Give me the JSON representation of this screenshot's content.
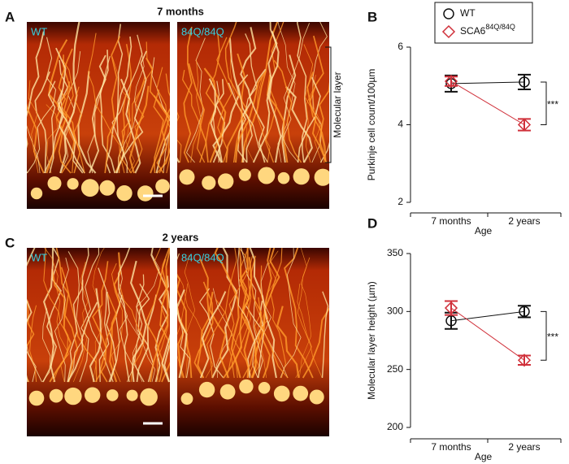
{
  "panels": {
    "A": {
      "letter": "A",
      "title": "7 months",
      "left_label": "WT",
      "right_label": "84Q/84Q",
      "annotation": "Molecular layer"
    },
    "C": {
      "letter": "C",
      "title": "2 years",
      "left_label": "WT",
      "right_label": "84Q/84Q"
    }
  },
  "chart_data": [
    {
      "type": "line",
      "panel_label": "B",
      "categories": [
        "7 months",
        "2 years"
      ],
      "xlabel": "Age",
      "ylabel": "Purkinje cell count/100µm",
      "ylim": [
        2,
        6
      ],
      "yticks": [
        2,
        4,
        6
      ],
      "legend": true,
      "annotation": "***",
      "series": [
        {
          "name": "WT",
          "color": "#111111",
          "marker": "circle",
          "values": [
            5.06,
            5.1
          ],
          "errors": [
            0.21,
            0.19
          ]
        },
        {
          "name": "SCA6",
          "name_superscript": "84Q/84Q",
          "color": "#d0303a",
          "marker": "diamond",
          "values": [
            5.12,
            4.0
          ],
          "errors": [
            0.12,
            0.15
          ]
        }
      ]
    },
    {
      "type": "line",
      "panel_label": "D",
      "categories": [
        "7 months",
        "2 years"
      ],
      "xlabel": "Age",
      "ylabel": "Molecular layer height (µm)",
      "ylim": [
        200,
        350
      ],
      "yticks": [
        200,
        250,
        300,
        350
      ],
      "legend": false,
      "annotation": "***",
      "series": [
        {
          "color": "#111111",
          "marker": "circle",
          "values": [
            292,
            300
          ],
          "errors": [
            7,
            5
          ]
        },
        {
          "color": "#d0303a",
          "marker": "diamond",
          "values": [
            303,
            258
          ],
          "errors": [
            6,
            4
          ]
        }
      ]
    }
  ]
}
